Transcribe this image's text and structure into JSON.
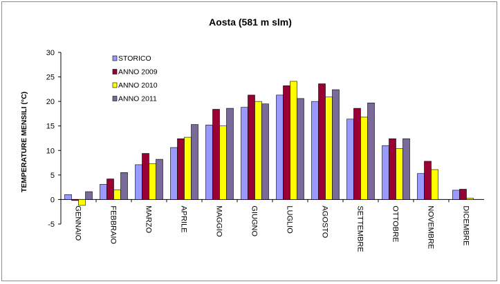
{
  "chart_data": {
    "type": "bar",
    "title": "Aosta (581 m slm)",
    "xlabel": "",
    "ylabel": "TEMPERATURE MENSILI (°C)",
    "ylim": [
      -5,
      30
    ],
    "yticks": [
      "30",
      "25",
      "20",
      "15",
      "10",
      "5",
      "0",
      "-5"
    ],
    "grid": false,
    "legend_position": "top-left",
    "categories": [
      "GENNAIO",
      "FEBBRAIO",
      "MARZO",
      "APRILE",
      "MAGGIO",
      "GIUGNO",
      "LUGLIO",
      "AGOSTO",
      "SETTEMBRE",
      "OTTOBRE",
      "NOVEMBRE",
      "DICEMBRE"
    ],
    "series": [
      {
        "name": "STORICO",
        "color": "#9999ff",
        "values": [
          1.0,
          3.1,
          7.1,
          10.6,
          15.2,
          18.8,
          21.3,
          20.0,
          16.4,
          11.0,
          5.3,
          1.9
        ]
      },
      {
        "name": "ANNO 2009",
        "color": "#990033",
        "values": [
          -0.2,
          4.2,
          9.4,
          12.4,
          18.4,
          21.3,
          23.2,
          23.6,
          18.6,
          12.4,
          7.8,
          2.1
        ]
      },
      {
        "name": "ANNO 2010",
        "color": "#ffff00",
        "values": [
          -1.2,
          2.0,
          7.3,
          12.7,
          15.0,
          20.0,
          24.1,
          20.9,
          16.8,
          10.4,
          6.1,
          0.3
        ]
      },
      {
        "name": "ANNO 2011",
        "color": "#7a6a9a",
        "values": [
          1.6,
          5.5,
          8.2,
          15.3,
          18.6,
          19.5,
          20.6,
          22.4,
          19.7,
          12.4,
          null,
          null
        ]
      }
    ]
  }
}
